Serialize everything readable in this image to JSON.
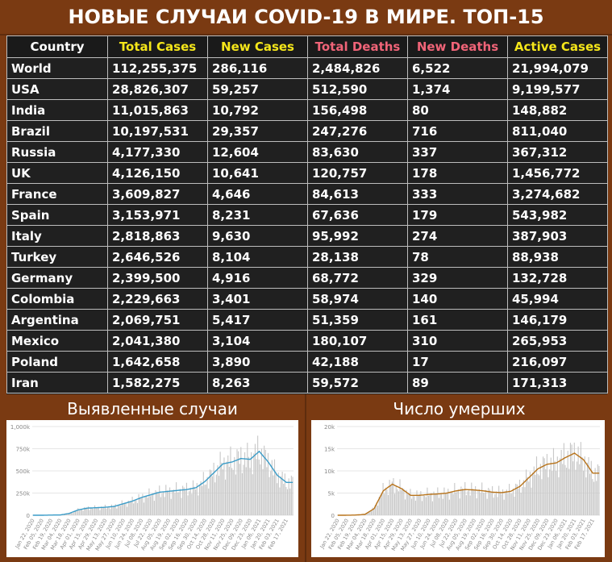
{
  "title": "НОВЫЕ СЛУЧАИ COVID-19 В МИРЕ. ТОП-15",
  "colors": {
    "country_header": "#ffffff",
    "cases_header": "#f5e61a",
    "deaths_header": "#f06478",
    "active_header": "#f5e61a",
    "cases_line": "#3a9cc8",
    "deaths_line": "#b8731a",
    "bars": "#c8c8c8"
  },
  "table": {
    "headers": [
      "Country",
      "Total Cases",
      "New Cases",
      "Total Deaths",
      "New Deaths",
      "Active Cases"
    ],
    "rows": [
      [
        "World",
        "112,255,375",
        "286,116",
        "2,484,826",
        "6,522",
        "21,994,079"
      ],
      [
        "USA",
        "28,826,307",
        "59,257",
        "512,590",
        "1,374",
        "9,199,577"
      ],
      [
        "India",
        "11,015,863",
        "10,792",
        "156,498",
        "80",
        "148,882"
      ],
      [
        "Brazil",
        "10,197,531",
        "29,357",
        "247,276",
        "716",
        "811,040"
      ],
      [
        "Russia",
        "4,177,330",
        "12,604",
        "83,630",
        "337",
        "367,312"
      ],
      [
        "UK",
        "4,126,150",
        "10,641",
        "120,757",
        "178",
        "1,456,772"
      ],
      [
        "France",
        "3,609,827",
        "4,646",
        "84,613",
        "333",
        "3,274,682"
      ],
      [
        "Spain",
        "3,153,971",
        "8,231",
        "67,636",
        "179",
        "543,982"
      ],
      [
        "Italy",
        "2,818,863",
        "9,630",
        "95,992",
        "274",
        "387,903"
      ],
      [
        "Turkey",
        "2,646,526",
        "8,104",
        "28,138",
        "78",
        "88,938"
      ],
      [
        "Germany",
        "2,399,500",
        "4,916",
        "68,772",
        "329",
        "132,728"
      ],
      [
        "Colombia",
        "2,229,663",
        "3,401",
        "58,974",
        "140",
        "45,994"
      ],
      [
        "Argentina",
        "2,069,751",
        "5,417",
        "51,359",
        "161",
        "146,179"
      ],
      [
        "Mexico",
        "2,041,380",
        "3,104",
        "180,107",
        "310",
        "265,953"
      ],
      [
        "Poland",
        "1,642,658",
        "3,890",
        "42,188",
        "17",
        "216,097"
      ],
      [
        "Iran",
        "1,582,275",
        "8,263",
        "59,572",
        "89",
        "171,313"
      ]
    ]
  },
  "chart_data": [
    {
      "type": "bar",
      "title": "Выявленные случаи",
      "yticks": [
        "1,000k",
        "750k",
        "500k",
        "250k",
        "0"
      ],
      "ylim": [
        0,
        1000000
      ],
      "xticks": [
        "Jan 22, 2020",
        "Feb 05, 2020",
        "Feb 19, 2020",
        "Mar 04, 2020",
        "Mar 18, 2020",
        "Apr 01, 2020",
        "Apr 15, 2020",
        "Apr 29, 2020",
        "May 13, 2020",
        "May 27, 2020",
        "Jun 10, 2020",
        "Jun 24, 2020",
        "Jul 08, 2020",
        "Jul 22, 2020",
        "Aug 05, 2020",
        "Aug 19, 2020",
        "Sep 02, 2020",
        "Sep 16, 2020",
        "Sep 30, 2020",
        "Oct 14, 2020",
        "Oct 28, 2020",
        "Nov 11, 2020",
        "Nov 25, 2020",
        "Dec 09, 2020",
        "Dec 23, 2020",
        "Jan 06, 2021",
        "Jan 20, 2021",
        "Feb 03, 2021",
        "Feb 17, 2021"
      ],
      "weekly_values": [
        0,
        100,
        2000,
        3000,
        20000,
        60000,
        80000,
        85000,
        90000,
        100000,
        130000,
        160000,
        200000,
        230000,
        260000,
        270000,
        280000,
        290000,
        310000,
        380000,
        480000,
        580000,
        600000,
        640000,
        630000,
        720000,
        600000,
        450000,
        370000
      ],
      "grid": true
    },
    {
      "type": "bar",
      "title": "Число умерших",
      "yticks": [
        "20k",
        "15k",
        "10k",
        "5k",
        "0"
      ],
      "ylim": [
        0,
        20000
      ],
      "xticks": [
        "Jan 22, 2020",
        "Feb 05, 2020",
        "Feb 19, 2020",
        "Mar 04, 2020",
        "Mar 18, 2020",
        "Apr 01, 2020",
        "Apr 15, 2020",
        "Apr 29, 2020",
        "May 13, 2020",
        "May 27, 2020",
        "Jun 10, 2020",
        "Jun 24, 2020",
        "Jul 08, 2020",
        "Jul 22, 2020",
        "Aug 05, 2020",
        "Aug 19, 2020",
        "Sep 02, 2020",
        "Sep 16, 2020",
        "Sep 30, 2020",
        "Oct 14, 2020",
        "Oct 28, 2020",
        "Nov 11, 2020",
        "Nov 25, 2020",
        "Dec 09, 2020",
        "Dec 23, 2020",
        "Jan 06, 2021",
        "Jan 20, 2021",
        "Feb 03, 2021",
        "Feb 17, 2021"
      ],
      "weekly_values": [
        0,
        10,
        50,
        200,
        1500,
        5500,
        7000,
        6000,
        4500,
        4500,
        4700,
        4800,
        5000,
        5500,
        5800,
        5700,
        5500,
        5200,
        5100,
        5400,
        6500,
        8500,
        10500,
        11500,
        11800,
        13000,
        14000,
        12500,
        9500
      ],
      "grid": true
    }
  ]
}
